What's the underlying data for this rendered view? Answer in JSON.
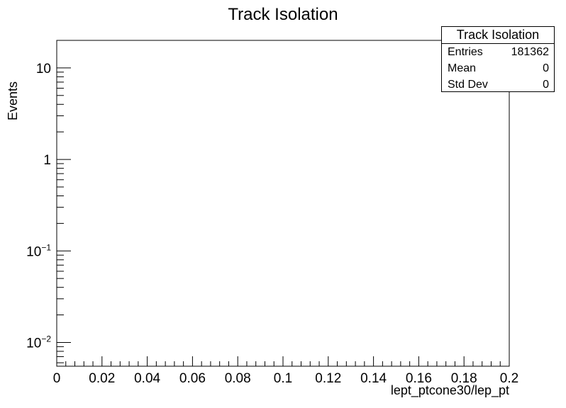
{
  "chart_data": {
    "type": "bar",
    "title": "Track Isolation",
    "xlabel": "lept_ptcone30/lep_pt",
    "ylabel": "Events",
    "xlim": [
      0,
      0.2
    ],
    "ylim": [
      0.0055,
      20
    ],
    "y_scale": "log",
    "x_ticks": [
      "0",
      "0.02",
      "0.04",
      "0.06",
      "0.08",
      "0.1",
      "0.12",
      "0.14",
      "0.16",
      "0.18",
      "0.2"
    ],
    "y_ticks": [
      {
        "value": 10,
        "base": "10",
        "exp": ""
      },
      {
        "value": 1,
        "base": "1",
        "exp": ""
      },
      {
        "value": 0.1,
        "base": "10",
        "exp": "−1"
      },
      {
        "value": 0.01,
        "base": "10",
        "exp": "−2"
      }
    ],
    "series": [],
    "grid": false
  },
  "stats": {
    "title": "Track Isolation",
    "entries_label": "Entries",
    "entries_value": "181362",
    "mean_label": "Mean",
    "mean_value": "0",
    "stddev_label": "Std Dev",
    "stddev_value": "0"
  }
}
